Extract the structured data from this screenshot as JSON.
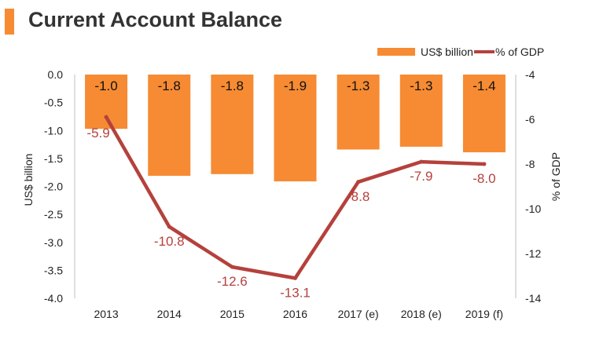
{
  "title": "Current Account Balance",
  "colors": {
    "accent": "#F68B33",
    "bar": "#F68B33",
    "line": "#B5413C"
  },
  "chart_data": {
    "type": "bar",
    "title": "Current Account Balance",
    "categories": [
      "2013",
      "2014",
      "2015",
      "2016",
      "2017 (e)",
      "2018 (e)",
      "2019 (f)"
    ],
    "series": [
      {
        "name": "US$ billion",
        "type": "bar",
        "axis": "left",
        "values": [
          -1.0,
          -1.8,
          -1.8,
          -1.9,
          -1.3,
          -1.3,
          -1.4
        ],
        "labels": [
          "-1.0",
          "-1.8",
          "-1.8",
          "-1.9",
          "-1.3",
          "-1.3",
          "-1.4"
        ],
        "heights": [
          -0.97,
          -1.81,
          -1.78,
          -1.91,
          -1.34,
          -1.29,
          -1.39
        ]
      },
      {
        "name": "% of GDP",
        "type": "line",
        "axis": "right",
        "values": [
          -5.9,
          -10.8,
          -12.6,
          -13.1,
          -8.8,
          -7.9,
          -8.0
        ],
        "labels": [
          "-5.9",
          "-10.8",
          "-12.6",
          "-13.1",
          "-8.8",
          "-7.9",
          "-8.0"
        ]
      }
    ],
    "ylabel": "US$ billion",
    "ylim": [
      -4.0,
      0.0
    ],
    "yticks": [
      "0.0",
      "-0.5",
      "-1.0",
      "-1.5",
      "-2.0",
      "-2.5",
      "-3.0",
      "-3.5",
      "-4.0"
    ],
    "y2label": "% of GDP",
    "y2lim": [
      -14,
      -4
    ],
    "y2ticks": [
      "-4",
      "-6",
      "-8",
      "-10",
      "-12",
      "-14"
    ],
    "grid": false,
    "legend": "top-right"
  }
}
